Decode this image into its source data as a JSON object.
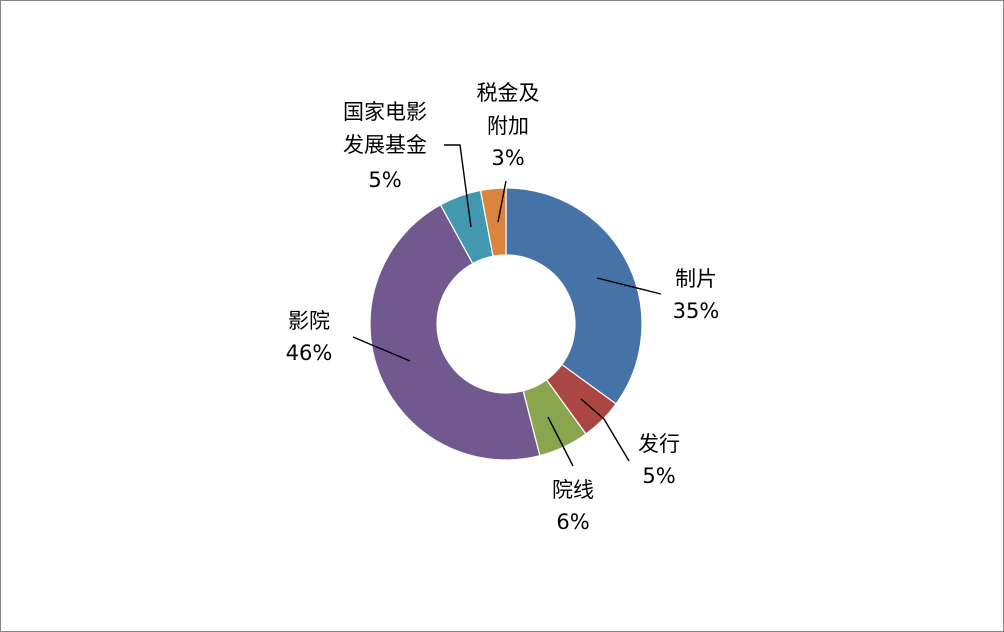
{
  "chart_data": {
    "type": "pie",
    "donut": true,
    "title": "",
    "series": [
      {
        "slices": [
          {
            "name": "制片",
            "value": 35,
            "label": "35%",
            "color": "#4572A7"
          },
          {
            "name": "发行",
            "value": 5,
            "label": "5%",
            "color": "#AA4643"
          },
          {
            "name": "院线",
            "value": 6,
            "label": "6%",
            "color": "#89A54E"
          },
          {
            "name": "影院",
            "value": 46,
            "label": "46%",
            "color": "#71588F"
          },
          {
            "name": "国家电影发展基金",
            "name_lines": [
              "国家电影",
              "发展基金"
            ],
            "value": 5,
            "label": "5%",
            "color": "#4198AF"
          },
          {
            "name": "税金及附加",
            "name_lines": [
              "税金及",
              "附加"
            ],
            "value": 3,
            "label": "3%",
            "color": "#DB843D"
          }
        ]
      }
    ],
    "legend": "none"
  }
}
